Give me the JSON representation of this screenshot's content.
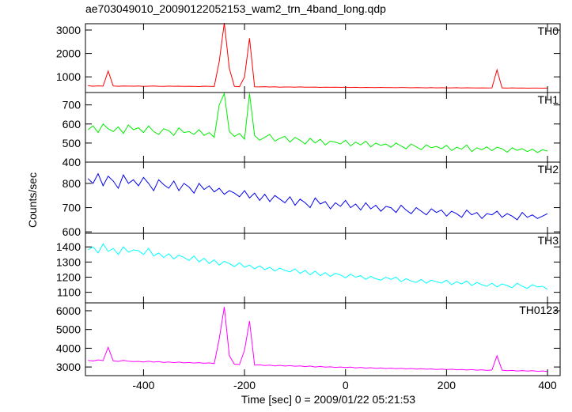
{
  "chart_data": {
    "type": "line",
    "title": "ae703049010_20090122052153_wam2_trn_4band_long.qdp",
    "xlabel": "Time [sec] 0 = 2009/01/22 05:21:53",
    "ylabel": "Counts/sec",
    "xlim": [
      -515,
      425
    ],
    "xticks": [
      -400,
      -200,
      0,
      200,
      400
    ],
    "x": [
      -510,
      -500,
      -490,
      -480,
      -470,
      -460,
      -450,
      -440,
      -430,
      -420,
      -410,
      -400,
      -390,
      -380,
      -370,
      -360,
      -350,
      -340,
      -330,
      -320,
      -310,
      -300,
      -290,
      -280,
      -270,
      -260,
      -250,
      -240,
      -230,
      -220,
      -210,
      -200,
      -190,
      -180,
      -170,
      -160,
      -150,
      -140,
      -130,
      -120,
      -110,
      -100,
      -90,
      -80,
      -70,
      -60,
      -50,
      -40,
      -30,
      -20,
      -10,
      0,
      10,
      20,
      30,
      40,
      50,
      60,
      70,
      80,
      90,
      100,
      110,
      120,
      130,
      140,
      150,
      160,
      170,
      180,
      190,
      200,
      210,
      220,
      230,
      240,
      250,
      260,
      270,
      280,
      290,
      300,
      310,
      320,
      330,
      340,
      350,
      360,
      370,
      380,
      390,
      400
    ],
    "panels": [
      {
        "label": "TH0",
        "color": "#ff0000",
        "ylim": [
          330,
          3270
        ],
        "yticks": [
          1000,
          2000,
          3000
        ],
        "values": [
          620,
          600,
          615,
          605,
          1250,
          610,
          598,
          612,
          605,
          600,
          608,
          595,
          602,
          610,
          598,
          590,
          605,
          596,
          600,
          592,
          598,
          590,
          585,
          600,
          594,
          588,
          1650,
          3300,
          1350,
          590,
          580,
          1000,
          2650,
          575,
          570,
          580,
          565,
          572,
          560,
          568,
          565,
          558,
          570,
          560,
          555,
          562,
          550,
          558,
          552,
          560,
          548,
          555,
          545,
          552,
          540,
          548,
          545,
          538,
          550,
          542,
          540,
          535,
          545,
          538,
          532,
          540,
          535,
          530,
          538,
          528,
          535,
          530,
          528,
          535,
          525,
          532,
          528,
          525,
          530,
          522,
          528,
          1300,
          525,
          520,
          528,
          518,
          522,
          515,
          520,
          518,
          515,
          520
        ]
      },
      {
        "label": "TH1",
        "color": "#00ee00",
        "ylim": [
          400,
          765
        ],
        "yticks": [
          400,
          500,
          600,
          700
        ],
        "values": [
          570,
          590,
          555,
          600,
          575,
          560,
          585,
          550,
          595,
          570,
          580,
          555,
          590,
          560,
          545,
          575,
          565,
          540,
          580,
          555,
          560,
          545,
          570,
          540,
          555,
          530,
          700,
          760,
          560,
          535,
          550,
          520,
          760,
          540,
          515,
          530,
          545,
          510,
          525,
          535,
          505,
          530,
          515,
          495,
          525,
          500,
          520,
          490,
          510,
          505,
          495,
          515,
          485,
          505,
          490,
          510,
          480,
          500,
          488,
          495,
          478,
          500,
          485,
          470,
          495,
          480,
          465,
          490,
          475,
          482,
          470,
          488,
          460,
          478,
          468,
          490,
          455,
          475,
          465,
          480,
          460,
          478,
          470,
          452,
          475,
          462,
          470,
          455,
          468,
          450,
          465,
          458
        ]
      },
      {
        "label": "TH2",
        "color": "#0000ee",
        "ylim": [
          594,
          888
        ],
        "yticks": [
          600,
          700,
          800
        ],
        "values": [
          820,
          800,
          840,
          790,
          830,
          810,
          780,
          835,
          800,
          815,
          790,
          825,
          800,
          770,
          815,
          795,
          780,
          810,
          770,
          800,
          785,
          760,
          800,
          775,
          790,
          765,
          780,
          755,
          770,
          760,
          745,
          770,
          740,
          760,
          730,
          755,
          725,
          750,
          735,
          720,
          745,
          710,
          735,
          720,
          700,
          740,
          715,
          725,
          695,
          720,
          705,
          730,
          700,
          715,
          690,
          720,
          695,
          710,
          685,
          705,
          700,
          680,
          710,
          690,
          675,
          700,
          685,
          670,
          695,
          680,
          690,
          665,
          685,
          675,
          660,
          690,
          670,
          680,
          655,
          675,
          670,
          685,
          660,
          675,
          665,
          650,
          680,
          660,
          670,
          655,
          665,
          675
        ]
      },
      {
        "label": "TH3",
        "color": "#00ffff",
        "ylim": [
          1030,
          1490
        ],
        "yticks": [
          1100,
          1200,
          1300,
          1400
        ],
        "values": [
          1380,
          1400,
          1360,
          1420,
          1370,
          1390,
          1350,
          1400,
          1365,
          1380,
          1375,
          1350,
          1390,
          1340,
          1360,
          1330,
          1355,
          1320,
          1345,
          1330,
          1310,
          1340,
          1300,
          1325,
          1290,
          1315,
          1280,
          1305,
          1290,
          1270,
          1295,
          1265,
          1280,
          1255,
          1275,
          1250,
          1265,
          1240,
          1260,
          1245,
          1235,
          1255,
          1225,
          1245,
          1215,
          1240,
          1210,
          1230,
          1205,
          1225,
          1215,
          1195,
          1220,
          1200,
          1210,
          1185,
          1205,
          1190,
          1180,
          1200,
          1185,
          1200,
          1170,
          1190,
          1175,
          1165,
          1185,
          1160,
          1180,
          1170,
          1160,
          1180,
          1150,
          1170,
          1155,
          1175,
          1145,
          1165,
          1150,
          1140,
          1160,
          1135,
          1155,
          1145,
          1130,
          1160,
          1140,
          1125,
          1150,
          1135,
          1140,
          1120
        ]
      },
      {
        "label": "TH0123",
        "color": "#ff00ff",
        "ylim": [
          2540,
          6420
        ],
        "yticks": [
          3000,
          4000,
          5000,
          6000
        ],
        "values": [
          3350,
          3320,
          3380,
          3340,
          4050,
          3330,
          3300,
          3350,
          3310,
          3290,
          3300,
          3270,
          3310,
          3260,
          3290,
          3240,
          3270,
          3230,
          3260,
          3220,
          3240,
          3210,
          3230,
          3200,
          3220,
          3180,
          4500,
          6200,
          3600,
          3150,
          3130,
          3900,
          5450,
          3100,
          3120,
          3080,
          3100,
          3060,
          3090,
          3050,
          3070,
          3040,
          3060,
          3020,
          3050,
          3000,
          3030,
          2990,
          3010,
          2980,
          3000,
          2970,
          2990,
          2950,
          2980,
          2940,
          2960,
          2930,
          2950,
          2920,
          2940,
          2910,
          2930,
          2900,
          2920,
          2890,
          2910,
          2880,
          2900,
          2870,
          2890,
          2860,
          2880,
          2850,
          2870,
          2840,
          2860,
          2830,
          2850,
          2820,
          2840,
          3600,
          2830,
          2800,
          2820,
          2790,
          2810,
          2780,
          2800,
          2770,
          2790,
          2760
        ]
      }
    ]
  }
}
